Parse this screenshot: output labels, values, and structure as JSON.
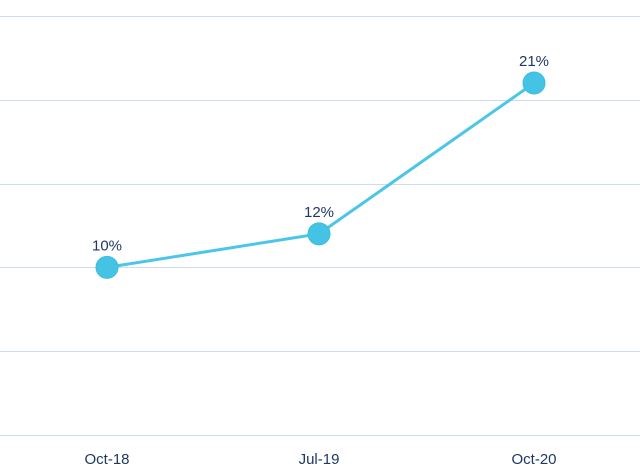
{
  "chart_data": {
    "type": "line",
    "categories": [
      "Oct-18",
      "Jul-19",
      "Oct-20"
    ],
    "series": [
      {
        "values": [
          10,
          12,
          21
        ],
        "labels": [
          "10%",
          "12%",
          "21%"
        ]
      }
    ],
    "ylim": [
      0,
      25
    ],
    "grid": true,
    "legend": "none",
    "colors": {
      "line": "#4cc6e6",
      "marker": "#45c3e4",
      "label": "#1f3864",
      "grid": "#cfdcec"
    }
  }
}
